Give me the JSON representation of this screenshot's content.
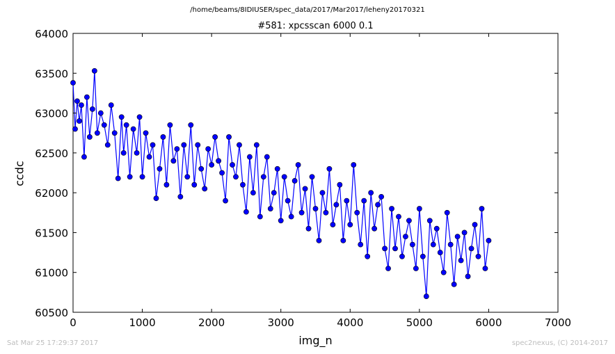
{
  "header": {
    "path": "/home/beams/8IDIUSER/spec_data/2017/Mar2017/leheny20170321",
    "subtitle": "#581: xpcsscan 6000 0.1"
  },
  "footer": {
    "timestamp": "Sat Mar 25 17:29:37 2017",
    "credit": "spec2nexus, (C) 2014-2017"
  },
  "chart_data": {
    "type": "line",
    "title": "#581: xpcsscan 6000 0.1",
    "xlabel": "img_n",
    "ylabel": "ccdc",
    "xlim": [
      0,
      7000
    ],
    "ylim": [
      60500,
      64000
    ],
    "xticks": [
      0,
      1000,
      2000,
      3000,
      4000,
      5000,
      6000,
      7000
    ],
    "yticks": [
      60500,
      61000,
      61500,
      62000,
      62500,
      63000,
      63500,
      64000
    ],
    "grid": false,
    "series": [
      {
        "color": "#0000ff",
        "marker": "circle",
        "x": [
          0,
          30,
          60,
          90,
          120,
          160,
          200,
          240,
          280,
          310,
          350,
          400,
          450,
          500,
          550,
          600,
          650,
          700,
          730,
          770,
          820,
          870,
          920,
          960,
          1000,
          1050,
          1100,
          1150,
          1200,
          1250,
          1300,
          1350,
          1400,
          1450,
          1500,
          1550,
          1600,
          1650,
          1700,
          1750,
          1800,
          1850,
          1900,
          1950,
          2000,
          2050,
          2100,
          2150,
          2200,
          2250,
          2300,
          2350,
          2400,
          2450,
          2500,
          2550,
          2600,
          2650,
          2700,
          2750,
          2800,
          2850,
          2900,
          2950,
          3000,
          3050,
          3100,
          3150,
          3200,
          3250,
          3300,
          3350,
          3400,
          3450,
          3500,
          3550,
          3600,
          3650,
          3700,
          3750,
          3800,
          3850,
          3900,
          3950,
          4000,
          4050,
          4100,
          4150,
          4200,
          4250,
          4300,
          4350,
          4400,
          4450,
          4500,
          4550,
          4600,
          4650,
          4700,
          4750,
          4800,
          4850,
          4900,
          4950,
          5000,
          5050,
          5100,
          5150,
          5200,
          5250,
          5300,
          5350,
          5400,
          5450,
          5500,
          5550,
          5600,
          5650,
          5700,
          5750,
          5800,
          5850,
          5900,
          5950,
          6000
        ],
        "y": [
          63380,
          62800,
          63150,
          62900,
          63100,
          62450,
          63200,
          62700,
          63050,
          63530,
          62750,
          63000,
          62850,
          62600,
          63100,
          62750,
          62180,
          62950,
          62500,
          62850,
          62200,
          62800,
          62500,
          62950,
          62200,
          62750,
          62450,
          62600,
          61930,
          62300,
          62700,
          62100,
          62850,
          62400,
          62550,
          61950,
          62600,
          62200,
          62850,
          62100,
          62600,
          62300,
          62050,
          62550,
          62350,
          62700,
          62400,
          62250,
          61900,
          62700,
          62350,
          62200,
          62600,
          62100,
          61760,
          62450,
          62000,
          62600,
          61700,
          62200,
          62450,
          61800,
          62000,
          62300,
          61650,
          62200,
          61900,
          61700,
          62150,
          62350,
          61750,
          62050,
          61550,
          62200,
          61800,
          61400,
          62000,
          61750,
          62300,
          61600,
          61850,
          62100,
          61400,
          61900,
          61600,
          62350,
          61750,
          61350,
          61900,
          61200,
          62000,
          61550,
          61850,
          61950,
          61300,
          61050,
          61800,
          61300,
          61700,
          61200,
          61450,
          61650,
          61350,
          61050,
          61800,
          61200,
          60700,
          61650,
          61350,
          61550,
          61250,
          61000,
          61750,
          61350,
          60850,
          61450,
          61150,
          61500,
          60950,
          61300,
          61600,
          61200,
          61800,
          61050,
          61400
        ]
      }
    ]
  }
}
